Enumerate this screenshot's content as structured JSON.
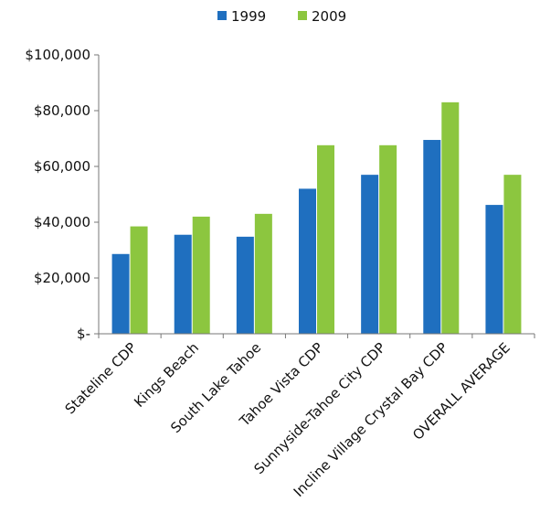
{
  "chart_data": {
    "type": "bar",
    "categories": [
      "Stateline CDP",
      "Kings Beach",
      "South Lake Tahoe",
      "Tahoe Vista CDP",
      "Sunnyside-Tahoe City CDP",
      "Incline Village Crystal Bay CDP",
      "OVERALL AVERAGE"
    ],
    "series": [
      {
        "name": "1999",
        "color": "#1f6fbf",
        "values": [
          28600,
          35500,
          34800,
          52000,
          57000,
          69500,
          46200
        ]
      },
      {
        "name": "2009",
        "color": "#8cc63f",
        "values": [
          38500,
          42000,
          43000,
          67600,
          67600,
          83000,
          57000
        ]
      }
    ],
    "title": "",
    "xlabel": "",
    "ylabel": "",
    "ylim": [
      0,
      100000
    ],
    "yticks": [
      {
        "value": 0,
        "label": "$-"
      },
      {
        "value": 20000,
        "label": "$20,000"
      },
      {
        "value": 40000,
        "label": "$40,000"
      },
      {
        "value": 60000,
        "label": "$60,000"
      },
      {
        "value": 80000,
        "label": "$80,000"
      },
      {
        "value": 100000,
        "label": "$100,000"
      }
    ],
    "grid": false,
    "legend_position": "top-center"
  }
}
